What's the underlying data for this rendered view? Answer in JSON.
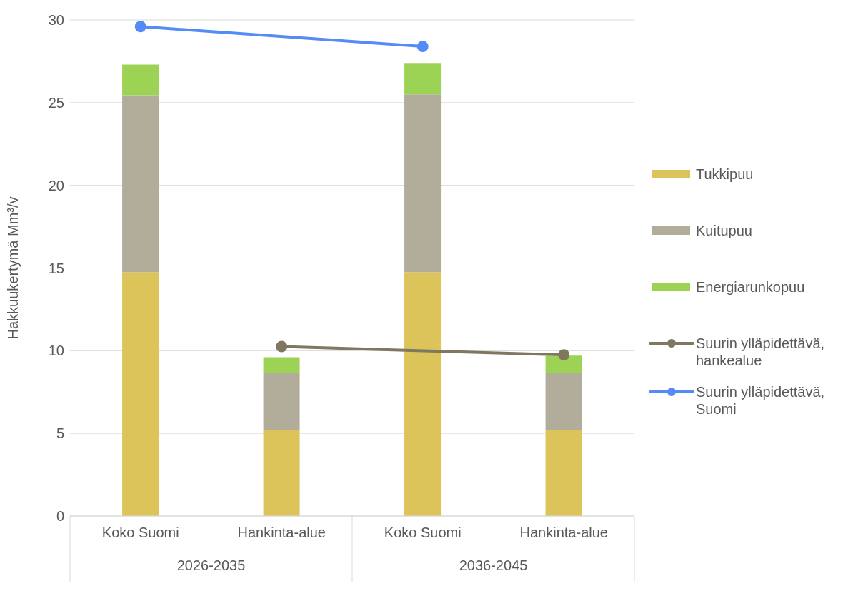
{
  "chart_data": {
    "type": "bar",
    "stacked": true,
    "ylabel": "Hakkuukertymä Mm³/v",
    "categories": [
      "Koko Suomi",
      "Hankinta-alue",
      "Koko Suomi",
      "Hankinta-alue"
    ],
    "annotations": [
      "2026-2035",
      "2036-2045"
    ],
    "series": [
      {
        "name": "Tukkipuu",
        "color": "#dcc45a",
        "values": [
          14.75,
          5.2,
          14.75,
          5.2
        ]
      },
      {
        "name": "Kuitupuu",
        "color": "#b2ac9a",
        "values": [
          10.7,
          3.45,
          10.75,
          3.45
        ]
      },
      {
        "name": "Energiarunkopuu",
        "color": "#9dd354",
        "values": [
          1.85,
          0.95,
          1.9,
          1.05
        ]
      },
      {
        "name": "Suurin ylläpidettävä, hankealue",
        "type": "line",
        "color": "#7f7760",
        "values": [
          null,
          10.25,
          null,
          9.75
        ]
      },
      {
        "name": "Suurin ylläpidettävä, Suomi",
        "type": "line",
        "color": "#558bf7",
        "values": [
          29.6,
          null,
          28.4,
          null
        ]
      }
    ],
    "ylim": [
      0,
      30
    ],
    "yticks": [
      0,
      5,
      10,
      15,
      20,
      25,
      30
    ],
    "grid": "y",
    "legend": "right",
    "marker": "circle"
  }
}
